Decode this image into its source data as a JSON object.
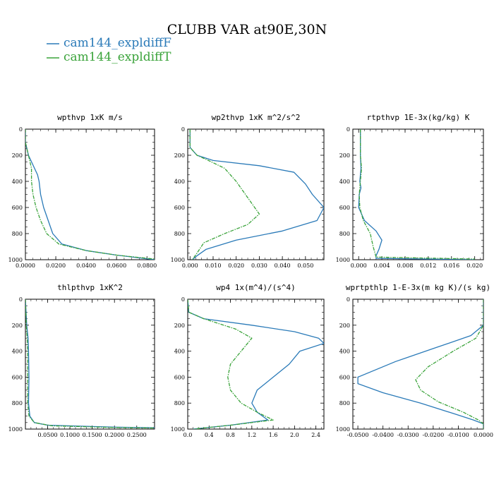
{
  "figure": {
    "title": "CLUBB VAR at90E,30N",
    "legend": [
      {
        "label": "cam144_expldiffF",
        "color": "#2a7ab8",
        "dash": false
      },
      {
        "label": "cam144_expldiffT",
        "color": "#3aa33a",
        "dash": true
      }
    ]
  },
  "chart_data": [
    {
      "type": "line",
      "title": "wpthvp  1xK m/s",
      "xlim": [
        0,
        0.085
      ],
      "xticks": [
        "0.0000",
        "0.0200",
        "0.0400",
        "0.0600",
        "0.0800"
      ],
      "xtick_values": [
        0,
        0.02,
        0.04,
        0.06,
        0.08
      ],
      "ylim": [
        0,
        1000
      ],
      "yticks": [
        "0",
        "200",
        "400",
        "600",
        "800",
        "1000"
      ],
      "series": [
        {
          "name": "cam144_expldiffF",
          "points": [
            [
              0,
              0
            ],
            [
              0,
              100
            ],
            [
              0.002,
              200
            ],
            [
              0.006,
              300
            ],
            [
              0.008,
              350
            ],
            [
              0.009,
              400
            ],
            [
              0.01,
              500
            ],
            [
              0.012,
              600
            ],
            [
              0.015,
              700
            ],
            [
              0.018,
              800
            ],
            [
              0.024,
              880
            ],
            [
              0.04,
              930
            ],
            [
              0.06,
              965
            ],
            [
              0.085,
              1000
            ]
          ]
        },
        {
          "name": "cam144_expldiffT",
          "points": [
            [
              0,
              0
            ],
            [
              0,
              100
            ],
            [
              0.002,
              200
            ],
            [
              0.004,
              300
            ],
            [
              0.004,
              400
            ],
            [
              0.005,
              500
            ],
            [
              0.007,
              600
            ],
            [
              0.01,
              700
            ],
            [
              0.014,
              800
            ],
            [
              0.022,
              880
            ],
            [
              0.04,
              930
            ],
            [
              0.06,
              965
            ],
            [
              0.085,
              995
            ]
          ]
        }
      ]
    },
    {
      "type": "line",
      "title": "wp2thvp  1xK m^2/s^2",
      "xlim": [
        -0.001,
        0.058
      ],
      "xticks": [
        "0.000",
        "0.010",
        "0.020",
        "0.030",
        "0.040",
        "0.050"
      ],
      "xtick_values": [
        0,
        0.01,
        0.02,
        0.03,
        0.04,
        0.05
      ],
      "ylim": [
        0,
        1000
      ],
      "yticks": [
        "0",
        "200",
        "400",
        "600",
        "800",
        "1000"
      ],
      "series": [
        {
          "name": "cam144_expldiffF",
          "points": [
            [
              0,
              0
            ],
            [
              0,
              140
            ],
            [
              0.003,
              200
            ],
            [
              0.01,
              240
            ],
            [
              0.03,
              280
            ],
            [
              0.045,
              330
            ],
            [
              0.05,
              420
            ],
            [
              0.053,
              500
            ],
            [
              0.058,
              600
            ],
            [
              0.055,
              700
            ],
            [
              0.04,
              780
            ],
            [
              0.02,
              850
            ],
            [
              0.007,
              920
            ],
            [
              0.003,
              970
            ],
            [
              0.001,
              1000
            ]
          ]
        },
        {
          "name": "cam144_expldiffT",
          "points": [
            [
              0,
              0
            ],
            [
              0,
              140
            ],
            [
              0.003,
              200
            ],
            [
              0.008,
              240
            ],
            [
              0.015,
              300
            ],
            [
              0.02,
              400
            ],
            [
              0.024,
              500
            ],
            [
              0.028,
              600
            ],
            [
              0.03,
              650
            ],
            [
              0.025,
              730
            ],
            [
              0.015,
              800
            ],
            [
              0.006,
              870
            ],
            [
              0.003,
              950
            ],
            [
              0.001,
              1000
            ]
          ]
        }
      ]
    },
    {
      "type": "line",
      "title": "rtpthvp  1E-3x(kg/kg) K",
      "xlim": [
        -0.001,
        0.0215
      ],
      "xticks": [
        "0.000",
        "0.004",
        "0.008",
        "0.012",
        "0.016",
        "0.020"
      ],
      "xtick_values": [
        0,
        0.004,
        0.008,
        0.012,
        0.016,
        0.02
      ],
      "ylim": [
        0,
        1000
      ],
      "yticks": [
        "0",
        "200",
        "400",
        "600",
        "800",
        "1000"
      ],
      "series": [
        {
          "name": "cam144_expldiffF",
          "points": [
            [
              0.0003,
              0
            ],
            [
              0.0003,
              200
            ],
            [
              0.0004,
              300
            ],
            [
              0.0002,
              400
            ],
            [
              0.0004,
              450
            ],
            [
              0.0001,
              500
            ],
            [
              0,
              600
            ],
            [
              0.001,
              700
            ],
            [
              0.003,
              780
            ],
            [
              0.004,
              850
            ],
            [
              0.0035,
              920
            ],
            [
              0.003,
              970
            ],
            [
              0.003,
              990
            ],
            [
              0.02,
              1000
            ]
          ]
        },
        {
          "name": "cam144_expldiffT",
          "points": [
            [
              0.0003,
              0
            ],
            [
              0.0003,
              200
            ],
            [
              0.0005,
              300
            ],
            [
              0.0003,
              400
            ],
            [
              0.0001,
              500
            ],
            [
              0.0002,
              600
            ],
            [
              0.0008,
              700
            ],
            [
              0.002,
              800
            ],
            [
              0.0025,
              900
            ],
            [
              0.003,
              980
            ],
            [
              0.02,
              995
            ]
          ]
        }
      ]
    },
    {
      "type": "line",
      "title": "thlpthvp  1xK^2",
      "xlim": [
        0,
        0.29
      ],
      "xticks": [
        "0.0500",
        "0.1000",
        "0.1500",
        "0.2000",
        "0.2500"
      ],
      "xtick_values": [
        0.05,
        0.1,
        0.15,
        0.2,
        0.25
      ],
      "ylim": [
        0,
        1000
      ],
      "yticks": [
        "0",
        "200",
        "400",
        "600",
        "800",
        "1000"
      ],
      "series": [
        {
          "name": "cam144_expldiffF",
          "points": [
            [
              0,
              0
            ],
            [
              0.003,
              200
            ],
            [
              0.006,
              300
            ],
            [
              0.007,
              400
            ],
            [
              0.008,
              600
            ],
            [
              0.007,
              800
            ],
            [
              0.01,
              900
            ],
            [
              0.02,
              950
            ],
            [
              0.05,
              970
            ],
            [
              0.2,
              985
            ],
            [
              0.29,
              990
            ]
          ]
        },
        {
          "name": "cam144_expldiffT",
          "points": [
            [
              0,
              0
            ],
            [
              0.002,
              200
            ],
            [
              0.004,
              300
            ],
            [
              0.005,
              400
            ],
            [
              0.005,
              600
            ],
            [
              0.005,
              800
            ],
            [
              0.008,
              900
            ],
            [
              0.02,
              950
            ],
            [
              0.06,
              975
            ],
            [
              0.2,
              988
            ],
            [
              0.29,
              992
            ]
          ]
        }
      ]
    },
    {
      "type": "line",
      "title": "wp4  1x(m^4)/(s^4)",
      "xlim": [
        0,
        2.55
      ],
      "xticks": [
        "0.0",
        "0.4",
        "0.8",
        "1.2",
        "1.6",
        "2.0",
        "2.4"
      ],
      "xtick_values": [
        0,
        0.4,
        0.8,
        1.2,
        1.6,
        2.0,
        2.4
      ],
      "ylim": [
        0,
        1000
      ],
      "yticks": [
        "0",
        "200",
        "400",
        "600",
        "800",
        "1000"
      ],
      "series": [
        {
          "name": "cam144_expldiffF",
          "points": [
            [
              0,
              0
            ],
            [
              0.02,
              100
            ],
            [
              0.3,
              150
            ],
            [
              1.2,
              200
            ],
            [
              2.0,
              250
            ],
            [
              2.45,
              300
            ],
            [
              2.55,
              340
            ],
            [
              2.1,
              400
            ],
            [
              1.9,
              500
            ],
            [
              1.6,
              600
            ],
            [
              1.3,
              700
            ],
            [
              1.2,
              800
            ],
            [
              1.3,
              870
            ],
            [
              1.5,
              930
            ],
            [
              0.8,
              970
            ],
            [
              0.1,
              1000
            ]
          ]
        },
        {
          "name": "cam144_expldiffT",
          "points": [
            [
              0,
              0
            ],
            [
              0.02,
              100
            ],
            [
              0.3,
              150
            ],
            [
              0.9,
              230
            ],
            [
              1.2,
              300
            ],
            [
              1.0,
              400
            ],
            [
              0.8,
              500
            ],
            [
              0.75,
              600
            ],
            [
              0.8,
              700
            ],
            [
              1.0,
              800
            ],
            [
              1.3,
              870
            ],
            [
              1.6,
              930
            ],
            [
              0.8,
              970
            ],
            [
              0.1,
              1000
            ]
          ]
        }
      ]
    },
    {
      "type": "line",
      "title": "wprtpthlp  1-E-3x(m kg K)/(s kg)",
      "xlim": [
        -0.052,
        0
      ],
      "xticks": [
        "-0.0500",
        "-0.0400",
        "-0.0300",
        "-0.0200",
        "-0.0100",
        "0.0000"
      ],
      "xtick_values": [
        -0.05,
        -0.04,
        -0.03,
        -0.02,
        -0.01,
        0
      ],
      "ylim": [
        0,
        1000
      ],
      "yticks": [
        "0",
        "200",
        "400",
        "600",
        "800",
        "1000"
      ],
      "series": [
        {
          "name": "cam144_expldiffF",
          "points": [
            [
              0,
              0
            ],
            [
              0,
              200
            ],
            [
              -0.005,
              280
            ],
            [
              -0.02,
              380
            ],
            [
              -0.035,
              480
            ],
            [
              -0.05,
              600
            ],
            [
              -0.05,
              650
            ],
            [
              -0.04,
              720
            ],
            [
              -0.025,
              800
            ],
            [
              -0.012,
              880
            ],
            [
              -0.004,
              930
            ],
            [
              0,
              960
            ],
            [
              0,
              1000
            ]
          ]
        },
        {
          "name": "cam144_expldiffT",
          "points": [
            [
              0,
              0
            ],
            [
              0,
              200
            ],
            [
              -0.003,
              300
            ],
            [
              -0.012,
              400
            ],
            [
              -0.022,
              520
            ],
            [
              -0.027,
              620
            ],
            [
              -0.025,
              700
            ],
            [
              -0.018,
              790
            ],
            [
              -0.008,
              870
            ],
            [
              -0.002,
              930
            ],
            [
              0,
              960
            ],
            [
              0,
              1000
            ]
          ]
        }
      ]
    }
  ]
}
